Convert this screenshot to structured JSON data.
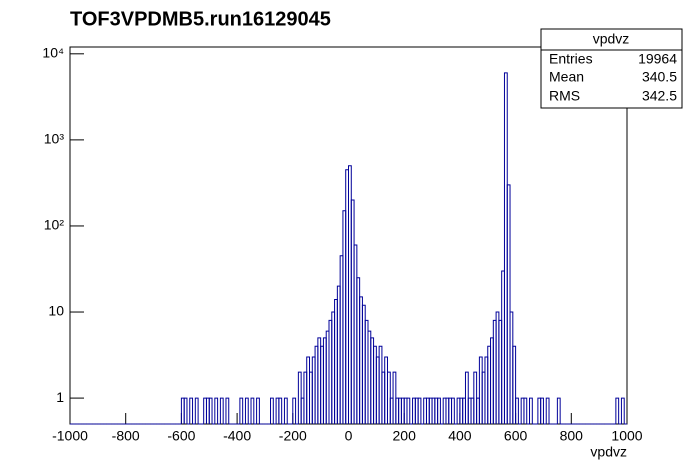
{
  "chart_data": {
    "type": "histogram",
    "title": "TOF3VPDMB5.run16129045",
    "x_label": "vpdvz",
    "color": "#000099",
    "log_y": true,
    "bins": [
      -1000,
      -990,
      -980,
      -970,
      -960,
      -950,
      -940,
      -930,
      -920,
      -910,
      -900,
      -890,
      -880,
      -870,
      -860,
      -850,
      -840,
      -830,
      -820,
      -810,
      -800,
      -790,
      -780,
      -770,
      -760,
      -750,
      -740,
      -730,
      -720,
      -710,
      -700,
      -690,
      -680,
      -670,
      -660,
      -650,
      -640,
      -630,
      -620,
      -610,
      -600,
      -590,
      -580,
      -570,
      -560,
      -550,
      -540,
      -530,
      -520,
      -510,
      -500,
      -490,
      -480,
      -470,
      -460,
      -450,
      -440,
      -430,
      -420,
      -410,
      -400,
      -390,
      -380,
      -370,
      -360,
      -350,
      -340,
      -330,
      -320,
      -310,
      -300,
      -290,
      -280,
      -270,
      -260,
      -250,
      -240,
      -230,
      -220,
      -210,
      -200,
      -190,
      -180,
      -170,
      -160,
      -150,
      -140,
      -130,
      -120,
      -110,
      -100,
      -90,
      -80,
      -70,
      -60,
      -50,
      -40,
      -30,
      -20,
      -10,
      0,
      10,
      20,
      30,
      40,
      50,
      60,
      70,
      80,
      90,
      100,
      110,
      120,
      130,
      140,
      150,
      160,
      170,
      180,
      190,
      200,
      210,
      220,
      230,
      240,
      250,
      260,
      270,
      280,
      290,
      300,
      310,
      320,
      330,
      340,
      350,
      360,
      370,
      380,
      390,
      400,
      410,
      420,
      430,
      440,
      450,
      460,
      470,
      480,
      490,
      500,
      510,
      520,
      530,
      540,
      550,
      560,
      570,
      580,
      590,
      600,
      610,
      620,
      630,
      640,
      650,
      660,
      670,
      680,
      690,
      700,
      710,
      720,
      730,
      740,
      750,
      760,
      770,
      780,
      790,
      800,
      810,
      820,
      830,
      840,
      850,
      860,
      870,
      880,
      890,
      900,
      910,
      920,
      930,
      940,
      950,
      960,
      970,
      980,
      990,
      1000
    ],
    "values": [
      0,
      0,
      0,
      0,
      0,
      0,
      0,
      0,
      0,
      0,
      0,
      0,
      0,
      0,
      0,
      0,
      0,
      0,
      0,
      0,
      0,
      0,
      0,
      0,
      0,
      0,
      0,
      0,
      0,
      0,
      0,
      0,
      0,
      0,
      0,
      0,
      0,
      0,
      0,
      0,
      1,
      1,
      0,
      1,
      0,
      1,
      0,
      0,
      1,
      1,
      1,
      0,
      1,
      0,
      1,
      0,
      1,
      0,
      0,
      0,
      0,
      1,
      0,
      1,
      0,
      1,
      0,
      1,
      0,
      0,
      0,
      0,
      1,
      0,
      1,
      1,
      0,
      1,
      0,
      0,
      1,
      0,
      2,
      1,
      2,
      3,
      2,
      3,
      4,
      5,
      4,
      5,
      6,
      8,
      10,
      14,
      20,
      45,
      150,
      450,
      500,
      200,
      60,
      25,
      15,
      12,
      8,
      6,
      5,
      4,
      3,
      4,
      2,
      3,
      2,
      1,
      2,
      1,
      1,
      1,
      1,
      1,
      0,
      1,
      1,
      1,
      0,
      1,
      1,
      1,
      1,
      1,
      1,
      0,
      1,
      1,
      1,
      1,
      0,
      1,
      1,
      1,
      2,
      1,
      1,
      2,
      1,
      3,
      2,
      3,
      4,
      5,
      8,
      10,
      8,
      30,
      6000,
      300,
      10,
      4,
      1,
      0,
      1,
      1,
      0,
      1,
      0,
      0,
      1,
      1,
      0,
      1,
      0,
      0,
      0,
      1,
      0,
      0,
      0,
      0,
      0,
      0,
      0,
      0,
      0,
      0,
      0,
      0,
      0,
      0,
      0,
      0,
      0,
      0,
      0,
      0,
      1,
      0,
      1,
      0
    ],
    "xlim": [
      -1000,
      1000
    ],
    "ylim": [
      0.5,
      12000
    ],
    "xticks": [
      -1000,
      -800,
      -600,
      -400,
      -200,
      0,
      200,
      400,
      600,
      800,
      1000
    ],
    "yticks": [
      1,
      10,
      {
        "value": 100,
        "label": "10²"
      },
      {
        "value": 1000,
        "label": "10³"
      },
      {
        "value": 10000,
        "label": "10⁴"
      }
    ],
    "stats": {
      "title": "vpdvz",
      "rows": [
        [
          "Entries",
          19964
        ],
        [
          "Mean",
          340.5
        ],
        [
          "RMS",
          342.5
        ]
      ]
    }
  }
}
